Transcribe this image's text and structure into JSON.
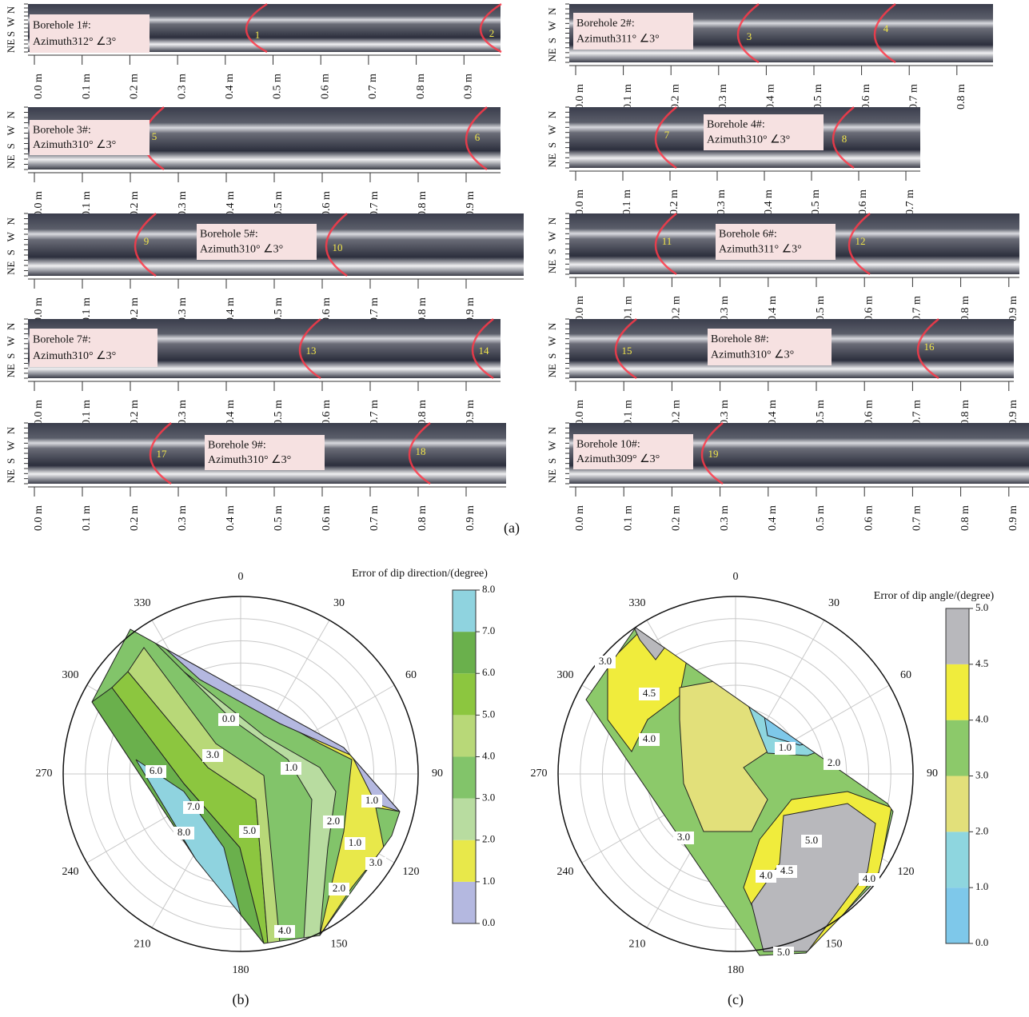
{
  "panel_a": {
    "caption": "(a)",
    "direction_labels": [
      "NE",
      "S",
      "W",
      "N"
    ],
    "boreholes": [
      {
        "name": "Borehole 1#:",
        "azimuth": "Azimuth312° ∠3°",
        "cracks": [
          "1",
          "2"
        ],
        "ticks": [
          "0.0 m",
          "0.1 m",
          "0.2 m",
          "0.3 m",
          "0.4 m",
          "0.5 m",
          "0.6 m",
          "0.7 m",
          "0.8 m",
          "0.9 m"
        ]
      },
      {
        "name": "Borehole 2#:",
        "azimuth": "Azimuth311° ∠3°",
        "cracks": [
          "3",
          "4"
        ],
        "ticks": [
          "0.0 m",
          "0.1 m",
          "0.2 m",
          "0.3 m",
          "0.4 m",
          "0.5 m",
          "0.6 m",
          "0.7 m",
          "0.8 m"
        ]
      },
      {
        "name": "Borehole 3#:",
        "azimuth": "Azimuth310° ∠3°",
        "cracks": [
          "5",
          "6"
        ],
        "ticks": [
          "0.0 m",
          "0.1 m",
          "0.2 m",
          "0.3 m",
          "0.4 m",
          "0.5 m",
          "0.6 m",
          "0.7 m",
          "0.8 m",
          "0.9 m"
        ]
      },
      {
        "name": "Borehole 4#:",
        "azimuth": "Azimuth310° ∠3°",
        "cracks": [
          "7",
          "8"
        ],
        "ticks": [
          "0.0 m",
          "0.1 m",
          "0.2 m",
          "0.3 m",
          "0.4 m",
          "0.5 m",
          "0.6 m",
          "0.7 m"
        ]
      },
      {
        "name": "Borehole 5#:",
        "azimuth": "Azimuth310° ∠3°",
        "cracks": [
          "9",
          "10"
        ],
        "ticks": [
          "0.0 m",
          "0.1 m",
          "0.2 m",
          "0.3 m",
          "0.4 m",
          "0.5 m",
          "0.6 m",
          "0.7 m",
          "0.8 m",
          "0.9 m"
        ]
      },
      {
        "name": "Borehole 6#:",
        "azimuth": "Azimuth311° ∠3°",
        "cracks": [
          "11",
          "12"
        ],
        "ticks": [
          "0.0 m",
          "0.1 m",
          "0.2 m",
          "0.3 m",
          "0.4 m",
          "0.5 m",
          "0.6 m",
          "0.7 m",
          "0.8 m",
          "0.9 m"
        ]
      },
      {
        "name": "Borehole 7#:",
        "azimuth": "Azimuth310° ∠3°",
        "cracks": [
          "13",
          "14"
        ],
        "ticks": [
          "0.0 m",
          "0.1 m",
          "0.2 m",
          "0.3 m",
          "0.4 m",
          "0.5 m",
          "0.6 m",
          "0.7 m",
          "0.8 m",
          "0.9 m"
        ]
      },
      {
        "name": "Borehole 8#:",
        "azimuth": "Azimuth310° ∠3°",
        "cracks": [
          "15",
          "16"
        ],
        "ticks": [
          "0.0 m",
          "0.1 m",
          "0.2 m",
          "0.3 m",
          "0.4 m",
          "0.5 m",
          "0.6 m",
          "0.7 m",
          "0.8 m",
          "0.9 m"
        ]
      },
      {
        "name": "Borehole 9#:",
        "azimuth": "Azimuth310° ∠3°",
        "cracks": [
          "17",
          "18"
        ],
        "ticks": [
          "0.0 m",
          "0.1 m",
          "0.2 m",
          "0.3 m",
          "0.4 m",
          "0.5 m",
          "0.6 m",
          "0.7 m",
          "0.8 m",
          "0.9 m"
        ]
      },
      {
        "name": "Borehole 10#:",
        "azimuth": "Azimuth309° ∠3°",
        "cracks": [
          "19"
        ],
        "ticks": [
          "0.0 m",
          "0.1 m",
          "0.2 m",
          "0.3 m",
          "0.4 m",
          "0.5 m",
          "0.6 m",
          "0.7 m",
          "0.8 m",
          "0.9 m"
        ]
      }
    ]
  },
  "panel_b": {
    "caption": "(b)",
    "colorbar_title": "Error of dip direction/(degree)",
    "angle_labels": [
      "0",
      "30",
      "60",
      "90",
      "120",
      "150",
      "180",
      "210",
      "240",
      "270",
      "300",
      "330"
    ],
    "colorbar_ticks": [
      "0.0",
      "1.0",
      "2.0",
      "3.0",
      "4.0",
      "5.0",
      "6.0",
      "7.0",
      "8.0"
    ],
    "contour_labels": [
      "0.0",
      "1.0",
      "1.0",
      "1.0",
      "2.0",
      "2.0",
      "3.0",
      "3.0",
      "4.0",
      "5.0",
      "6.0",
      "7.0",
      "8.0"
    ]
  },
  "panel_c": {
    "caption": "(c)",
    "colorbar_title": "Error of dip angle/(degree)",
    "angle_labels": [
      "0",
      "30",
      "60",
      "90",
      "120",
      "150",
      "180",
      "210",
      "240",
      "270",
      "300",
      "330"
    ],
    "colorbar_ticks": [
      "0.0",
      "1.0",
      "2.0",
      "3.0",
      "4.0",
      "4.5",
      "5.0"
    ],
    "contour_labels": [
      "3.0",
      "4.5",
      "4.0",
      "1.0",
      "2.0",
      "3.0",
      "5.0",
      "4.5",
      "4.0",
      "4.0",
      "5.0"
    ]
  }
}
